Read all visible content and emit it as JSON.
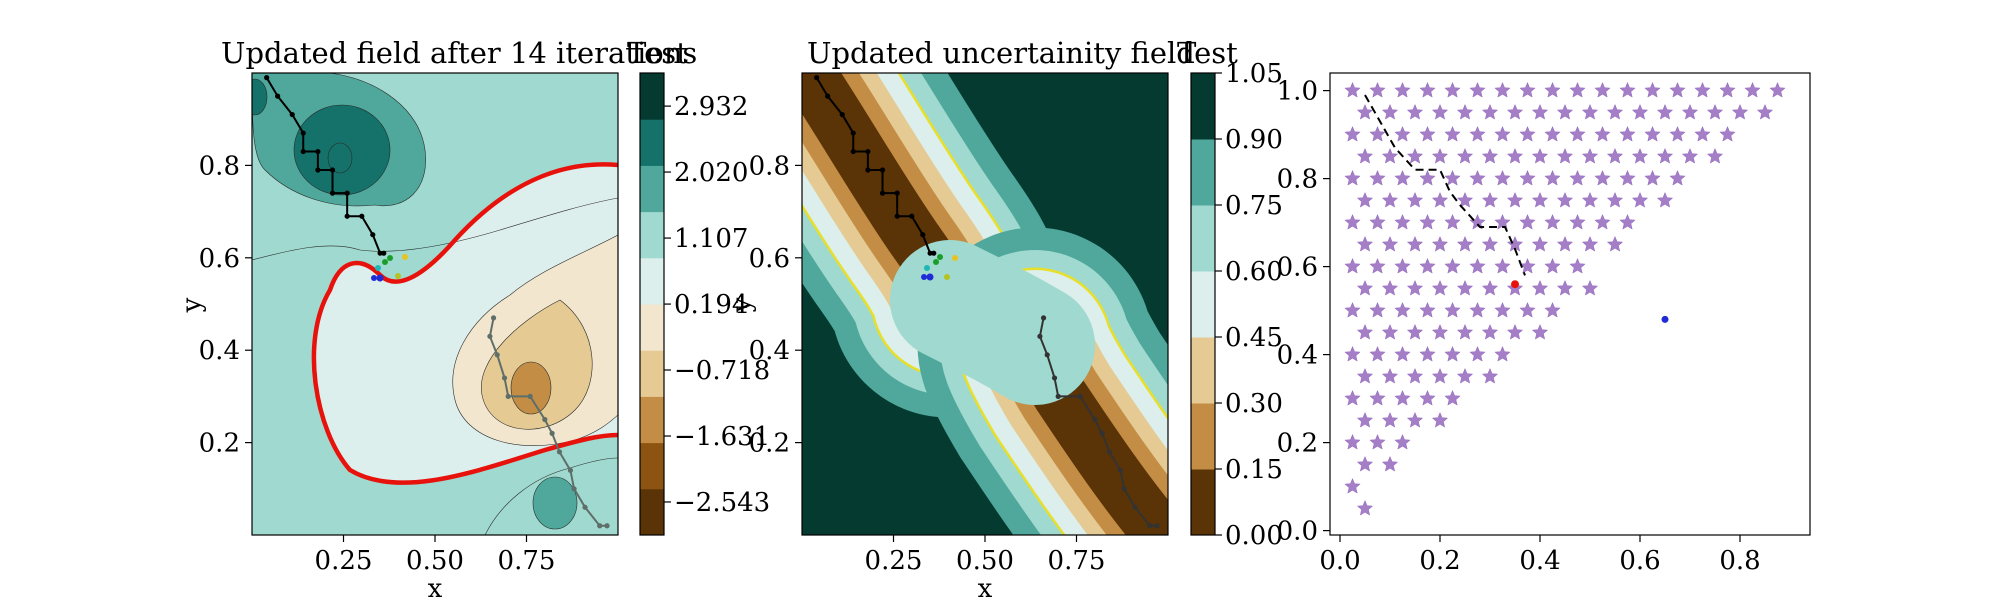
{
  "chart_data": [
    {
      "type": "contour",
      "title": "Updated field after 14 iterations",
      "xlabel": "x",
      "ylabel": "y",
      "xlim": [
        0.0,
        1.0
      ],
      "ylim": [
        0.0,
        1.0
      ],
      "xticks": [
        "0.25",
        "0.50",
        "0.75"
      ],
      "yticks": [
        "0.2",
        "0.4",
        "0.6",
        "0.8"
      ],
      "colorbar": {
        "label": "Test",
        "ticks": [
          "2.932",
          "2.020",
          "1.107",
          "0.194",
          "−0.718",
          "−1.631",
          "−2.543"
        ],
        "tick_values": [
          2.932,
          2.02,
          1.107,
          0.194,
          -0.718,
          -1.631,
          -2.543
        ],
        "vmin": -3.0,
        "vmax": 3.39
      },
      "zero_contour_color": "#e8120c",
      "path_primary": {
        "x": [
          0.04,
          0.07,
          0.11,
          0.14,
          0.14,
          0.18,
          0.18,
          0.22,
          0.22,
          0.26,
          0.26,
          0.3,
          0.33,
          0.35,
          0.36
        ],
        "y": [
          0.99,
          0.95,
          0.91,
          0.87,
          0.83,
          0.83,
          0.79,
          0.79,
          0.74,
          0.74,
          0.69,
          0.69,
          0.65,
          0.61,
          0.61
        ]
      },
      "path_secondary": {
        "x": [
          0.66,
          0.65,
          0.67,
          0.69,
          0.7,
          0.76,
          0.8,
          0.82,
          0.84,
          0.87,
          0.88,
          0.91,
          0.95,
          0.97
        ],
        "y": [
          0.47,
          0.43,
          0.39,
          0.34,
          0.3,
          0.3,
          0.25,
          0.22,
          0.18,
          0.14,
          0.1,
          0.06,
          0.02,
          0.02
        ]
      }
    },
    {
      "type": "contour",
      "title": "Updated uncertainity field",
      "xlabel": "x",
      "ylabel": "y",
      "xlim": [
        0.0,
        1.0
      ],
      "ylim": [
        0.0,
        1.0
      ],
      "xticks": [
        "0.25",
        "0.50",
        "0.75"
      ],
      "yticks": [
        "0.2",
        "0.4",
        "0.6",
        "0.8"
      ],
      "colorbar": {
        "label": "Test",
        "ticks": [
          "1.05",
          "0.90",
          "0.75",
          "0.60",
          "0.45",
          "0.30",
          "0.15",
          "0.00"
        ],
        "tick_values": [
          1.05,
          0.9,
          0.75,
          0.6,
          0.45,
          0.3,
          0.15,
          0.0
        ],
        "vmin": 0.0,
        "vmax": 1.05
      },
      "path_primary": {
        "x": [
          0.04,
          0.07,
          0.11,
          0.14,
          0.14,
          0.18,
          0.18,
          0.22,
          0.22,
          0.26,
          0.26,
          0.3,
          0.33,
          0.35,
          0.36
        ],
        "y": [
          0.99,
          0.95,
          0.91,
          0.87,
          0.83,
          0.83,
          0.79,
          0.79,
          0.74,
          0.74,
          0.69,
          0.69,
          0.65,
          0.61,
          0.61
        ]
      },
      "path_secondary": {
        "x": [
          0.66,
          0.65,
          0.67,
          0.69,
          0.7,
          0.76,
          0.8,
          0.82,
          0.84,
          0.87,
          0.88,
          0.91,
          0.95,
          0.97
        ],
        "y": [
          0.47,
          0.43,
          0.39,
          0.34,
          0.3,
          0.3,
          0.25,
          0.22,
          0.18,
          0.14,
          0.1,
          0.06,
          0.02,
          0.02
        ]
      }
    },
    {
      "type": "scatter",
      "xlim": [
        -0.02,
        0.94
      ],
      "ylim": [
        -0.01,
        1.04
      ],
      "xticks": [
        "0.0",
        "0.2",
        "0.4",
        "0.6",
        "0.8"
      ],
      "yticks": [
        "0.0",
        "0.2",
        "0.4",
        "0.6",
        "0.8",
        "1.0"
      ],
      "star_color": "#9467bd",
      "star_grid": {
        "spacing": 0.05,
        "rule": "x + 0.05 <= y + 0.05 * 0.9 ... triangular grid x from 0.05, y from 0.05 to 1.0"
      },
      "red_point": {
        "x": 0.35,
        "y": 0.56
      },
      "blue_point": {
        "x": 0.65,
        "y": 0.48
      },
      "path": {
        "x": [
          0.05,
          0.08,
          0.11,
          0.15,
          0.2,
          0.22,
          0.24,
          0.28,
          0.33,
          0.35,
          0.37
        ],
        "y": [
          0.99,
          0.93,
          0.87,
          0.82,
          0.82,
          0.77,
          0.74,
          0.69,
          0.69,
          0.64,
          0.58
        ]
      }
    }
  ]
}
